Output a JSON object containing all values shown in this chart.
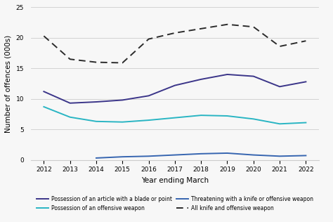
{
  "years": [
    2012,
    2013,
    2014,
    2015,
    2016,
    2017,
    2018,
    2019,
    2020,
    2021,
    2022
  ],
  "blade_or_point": [
    11.2,
    9.3,
    9.5,
    9.8,
    10.5,
    12.2,
    13.2,
    14.0,
    13.7,
    12.0,
    12.8
  ],
  "offensive_weapon": [
    8.7,
    7.0,
    6.3,
    6.2,
    6.5,
    6.9,
    7.3,
    7.2,
    6.7,
    5.9,
    6.1
  ],
  "threatening": [
    null,
    null,
    0.3,
    0.5,
    0.6,
    0.8,
    1.0,
    1.1,
    0.8,
    0.6,
    0.7
  ],
  "all_knife": [
    20.3,
    16.5,
    16.0,
    15.9,
    19.8,
    20.8,
    21.5,
    22.2,
    21.8,
    18.6,
    19.5
  ],
  "blade_color": "#3b3589",
  "offensive_color": "#29b5c3",
  "threatening_color": "#3665b0",
  "all_knife_color": "#2b2b2b",
  "xlabel": "Year ending March",
  "ylabel": "Number of offences (000s)",
  "ylim": [
    0,
    25
  ],
  "yticks": [
    0,
    5,
    10,
    15,
    20,
    25
  ],
  "legend_labels": [
    "Possession of an article with a blade or point",
    "Possession of an offensive weapon",
    "Threatening with a knife or offensive weapon",
    "All knife and offensive weapon"
  ],
  "background_color": "#f7f7f7"
}
